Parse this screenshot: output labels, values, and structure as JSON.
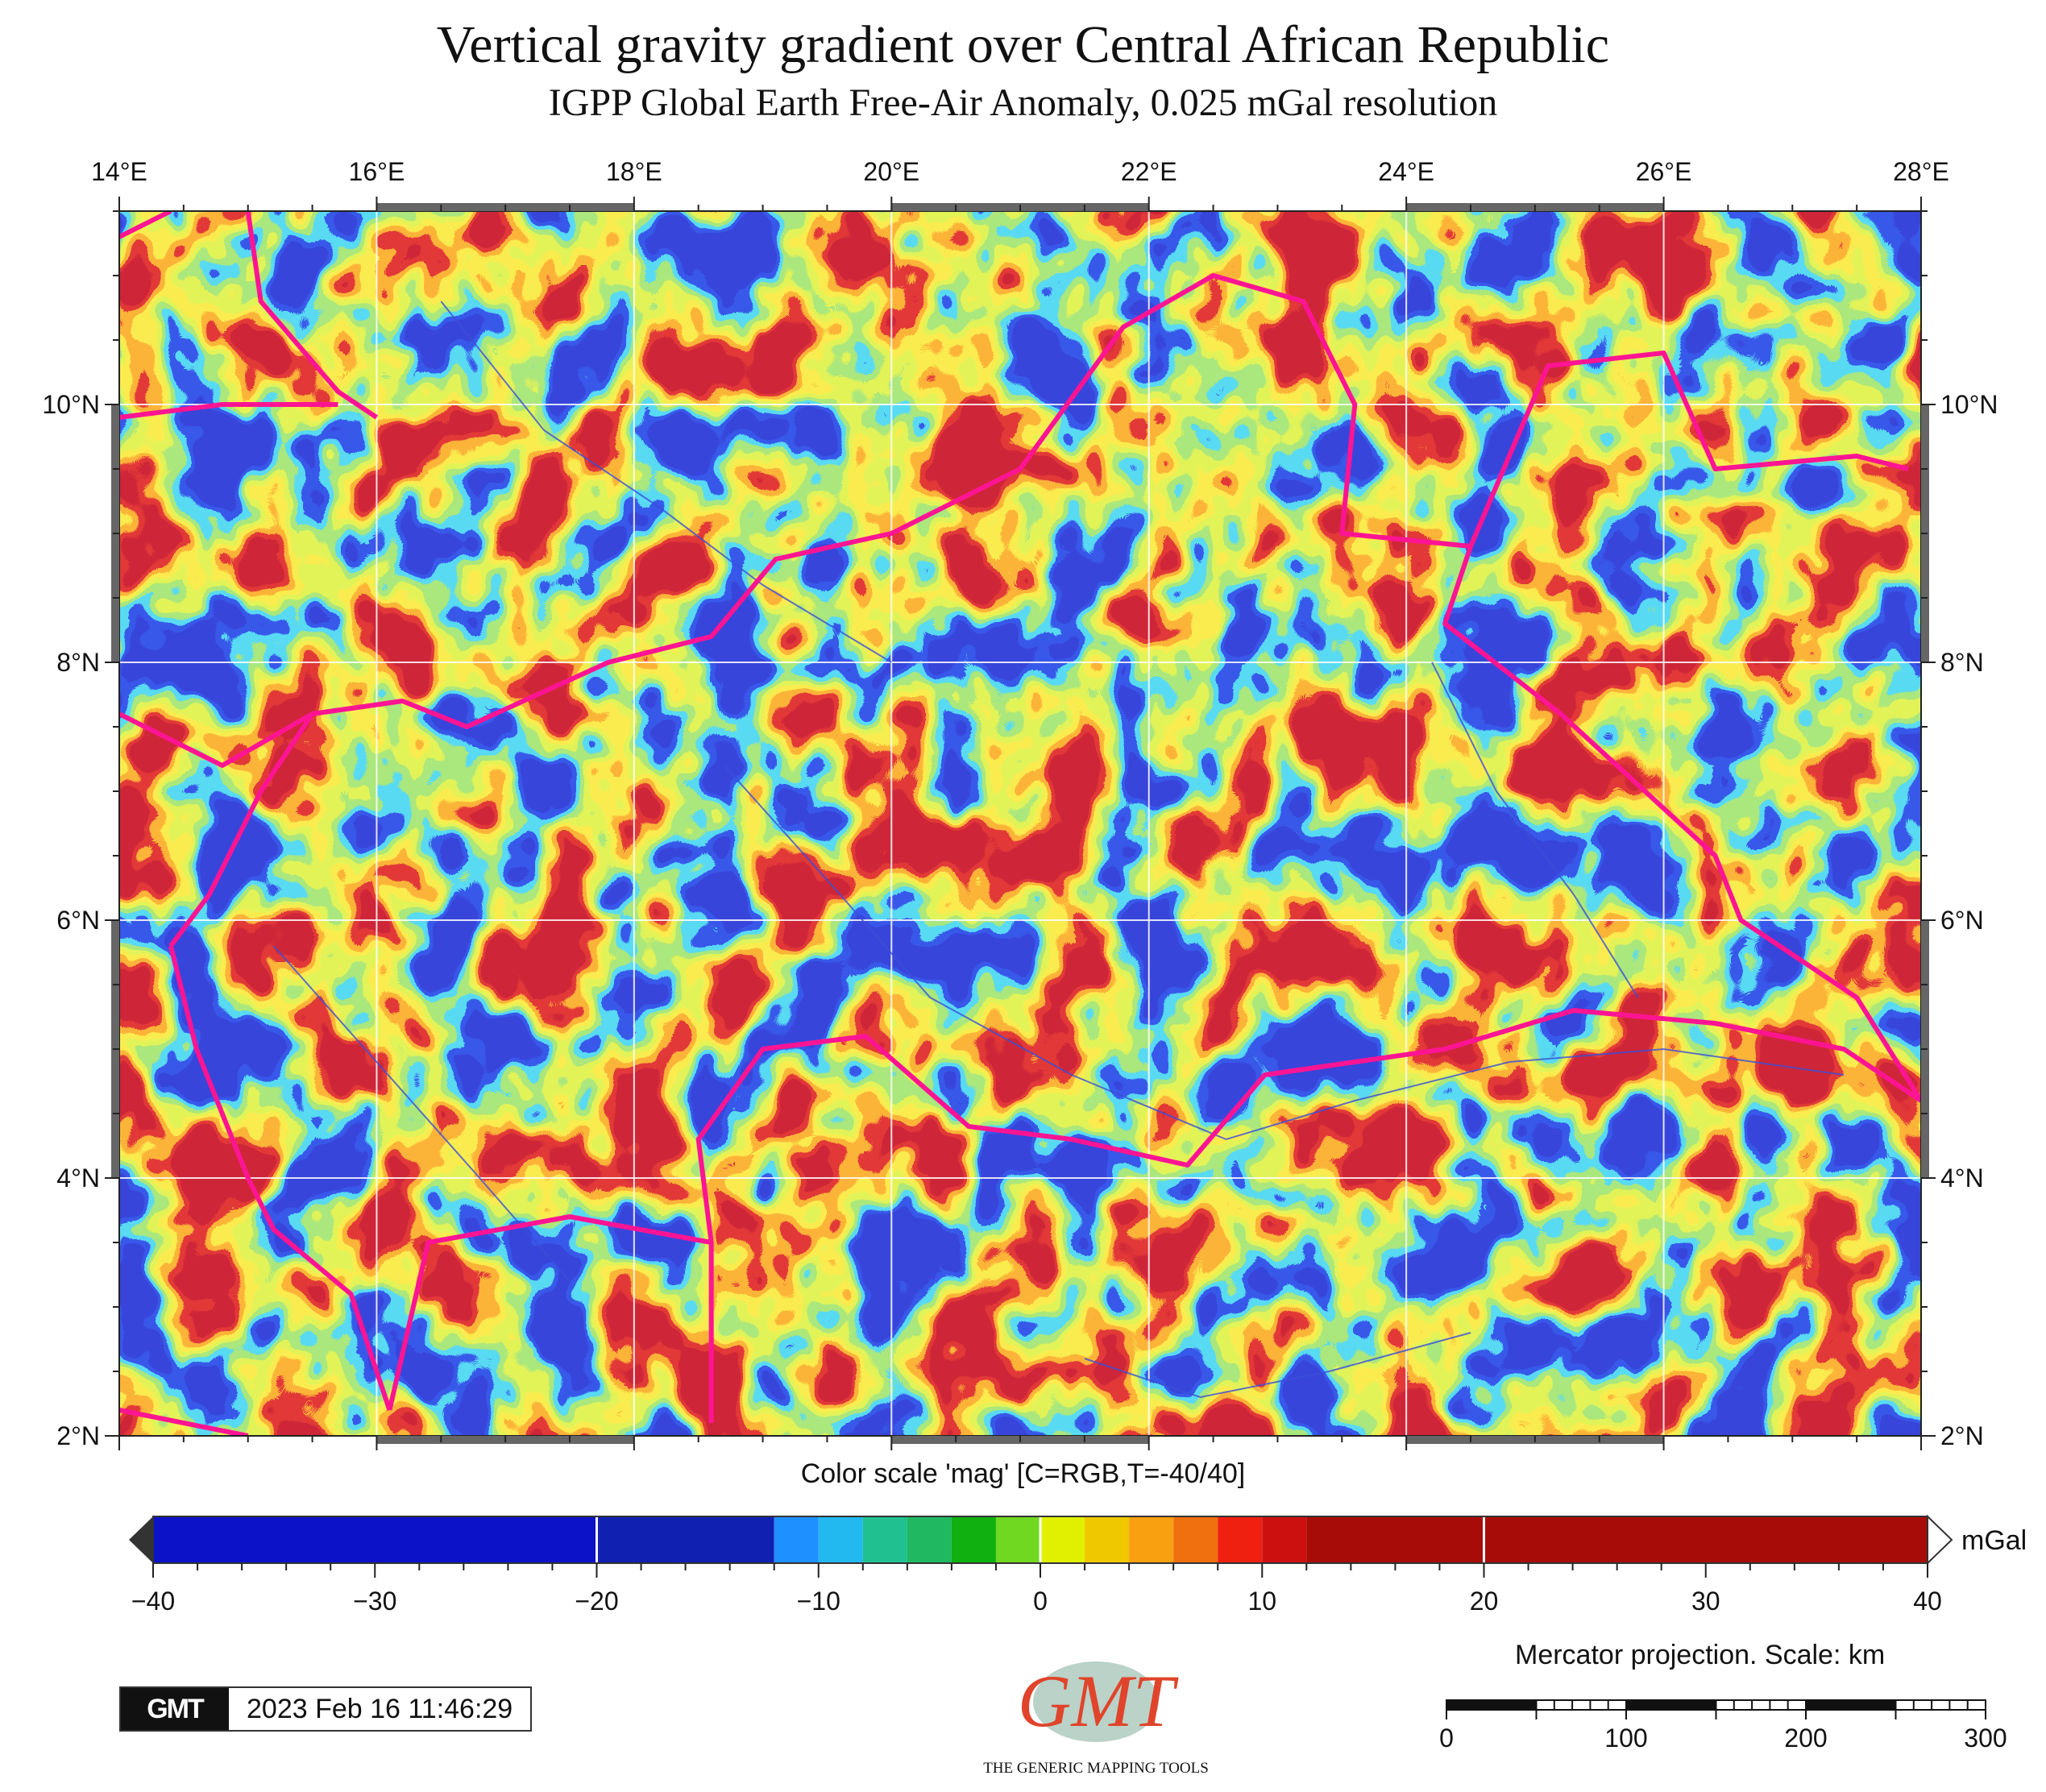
{
  "title": "Vertical gravity gradient over Central African Republic",
  "subtitle": "IGPP Global Earth Free-Air Anomaly, 0.025 mGal resolution",
  "map": {
    "lon_range": [
      14,
      28
    ],
    "lat_range": [
      2,
      11.5
    ],
    "lon_ticks": [
      "14°E",
      "16°E",
      "18°E",
      "20°E",
      "22°E",
      "24°E",
      "26°E",
      "28°E"
    ],
    "lat_ticks": [
      "10°N",
      "8°N",
      "6°N",
      "4°N",
      "2°N"
    ],
    "border_color": "#ff1493",
    "river_color": "#3a4fd8"
  },
  "colorbar": {
    "title": "Color scale 'mag' [C=RGB,T=-40/40]",
    "unit": "mGal",
    "tick_labels": [
      "−40",
      "−30",
      "−20",
      "−10",
      "0",
      "10",
      "20",
      "30",
      "40"
    ],
    "range": [
      -40,
      40
    ]
  },
  "scale_bar": {
    "title": "Mercator projection. Scale: km",
    "labels": [
      "0",
      "100",
      "200",
      "300"
    ]
  },
  "stamp": {
    "logo": "GMT",
    "date": "2023 Feb 16 11:46:29"
  },
  "logo": {
    "text": "GMT",
    "tagline": "THE GENERIC MAPPING TOOLS"
  }
}
